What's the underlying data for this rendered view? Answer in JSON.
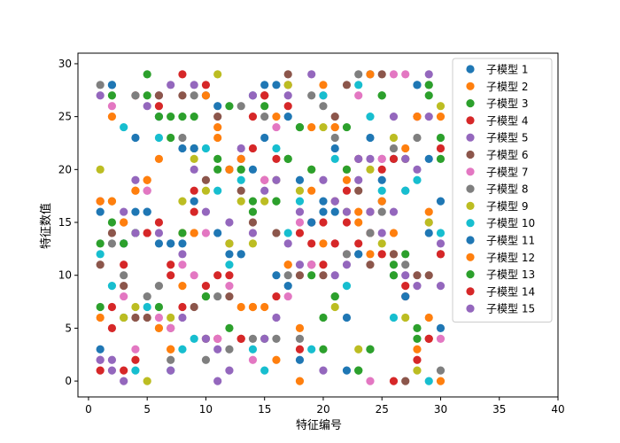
{
  "chart_data": {
    "type": "scatter",
    "title": "",
    "xlabel": "特征编号",
    "ylabel": "特征数值",
    "xlim": [
      -0.9,
      40
    ],
    "ylim": [
      -1.5,
      31
    ],
    "xticks": [
      0,
      5,
      10,
      15,
      20,
      25,
      30,
      35,
      40
    ],
    "yticks": [
      0,
      5,
      10,
      15,
      20,
      25,
      30
    ],
    "grid": false,
    "legend_position": "top-right",
    "series": [
      {
        "name": "子模型 1",
        "color": "#1f77b4",
        "x": [
          1,
          2,
          3,
          4,
          5,
          6,
          7,
          8,
          9,
          10,
          11,
          12,
          13,
          14,
          15,
          16,
          17,
          18,
          19,
          20,
          21,
          22,
          23,
          24,
          25,
          26,
          27,
          28,
          29,
          30
        ],
        "y": [
          3,
          28,
          13,
          23,
          16,
          25,
          13,
          22,
          17,
          27,
          14,
          12,
          12,
          27,
          23,
          28,
          9,
          2,
          15,
          17,
          16,
          1,
          12,
          23,
          19,
          21,
          18,
          28,
          21,
          5
        ]
      },
      {
        "name": "子模型 2",
        "color": "#ff7f0e",
        "x": [
          1,
          2,
          3,
          4,
          5,
          6,
          7,
          8,
          9,
          10,
          11,
          12,
          13,
          14,
          15,
          16,
          17,
          18,
          19,
          20,
          21,
          22,
          23,
          24,
          25,
          26,
          27,
          28,
          29,
          30
        ],
        "y": [
          6,
          25,
          15,
          18,
          19,
          21,
          3,
          9,
          14,
          27,
          24,
          20,
          7,
          7,
          27,
          2,
          11,
          5,
          24,
          13,
          24,
          20,
          16,
          12,
          12,
          12,
          22,
          3,
          6,
          0
        ]
      },
      {
        "name": "子模型 3",
        "color": "#2ca02c",
        "x": [
          1,
          2,
          3,
          4,
          5,
          6,
          7,
          8,
          9,
          10,
          11,
          12,
          13,
          14,
          15,
          16,
          17,
          18,
          19,
          20,
          21,
          22,
          23,
          24,
          25,
          26,
          27,
          28,
          29,
          30
        ],
        "y": [
          13,
          27,
          6,
          14,
          29,
          7,
          25,
          25,
          22,
          8,
          21,
          26,
          20,
          16,
          26,
          17,
          21,
          24,
          10,
          3,
          8,
          24,
          1,
          3,
          27,
          11,
          21,
          4,
          27,
          23
        ]
      },
      {
        "name": "子模型 4",
        "color": "#d62728",
        "x": [
          1,
          2,
          3,
          4,
          5,
          6,
          7,
          8,
          9,
          10,
          11,
          12,
          13,
          14,
          15,
          16,
          17,
          18,
          19,
          20,
          21,
          22,
          23,
          24,
          25,
          26,
          27,
          28,
          29,
          30
        ],
        "y": [
          17,
          7,
          11,
          27,
          14,
          26,
          11,
          29,
          16,
          28,
          4,
          13,
          4,
          25,
          19,
          8,
          28,
          14,
          15,
          11,
          17,
          15,
          21,
          14,
          20,
          0,
          8,
          25,
          4,
          22
        ]
      },
      {
        "name": "子模型 5",
        "color": "#9467bd",
        "x": [
          1,
          2,
          3,
          4,
          5,
          6,
          7,
          8,
          9,
          10,
          11,
          12,
          13,
          14,
          15,
          16,
          17,
          18,
          19,
          20,
          21,
          22,
          23,
          24,
          25,
          26,
          27,
          28,
          29,
          30
        ],
        "y": [
          27,
          2,
          16,
          19,
          18,
          27,
          28,
          12,
          20,
          16,
          0,
          15,
          21,
          27,
          18,
          6,
          13,
          11,
          11,
          19,
          17,
          11,
          21,
          21,
          21,
          25,
          10,
          20,
          29,
          9
        ]
      },
      {
        "name": "子模型 6",
        "color": "#8c564b",
        "x": [
          1,
          2,
          3,
          4,
          5,
          6,
          7,
          8,
          9,
          10,
          11,
          12,
          13,
          14,
          15,
          16,
          17,
          18,
          19,
          20,
          21,
          22,
          23,
          24,
          25,
          26,
          27,
          28,
          29,
          30
        ],
        "y": [
          11,
          14,
          9,
          6,
          6,
          27,
          5,
          27,
          7,
          19,
          25,
          8,
          18,
          15,
          27,
          14,
          29,
          10,
          11,
          10,
          25,
          28,
          18,
          11,
          29,
          12,
          0,
          10,
          10,
          12
        ]
      },
      {
        "name": "子模型 7",
        "color": "#e377c2",
        "x": [
          1,
          2,
          3,
          4,
          5,
          6,
          7,
          8,
          9,
          10,
          11,
          12,
          13,
          14,
          15,
          16,
          17,
          18,
          19,
          20,
          21,
          22,
          23,
          24,
          25,
          26,
          27,
          28,
          29,
          30
        ],
        "y": [
          2,
          26,
          8,
          3,
          18,
          6,
          5,
          11,
          10,
          14,
          4,
          9,
          21,
          2,
          19,
          24,
          8,
          15,
          11,
          27,
          13,
          12,
          27,
          0,
          21,
          29,
          29,
          25,
          15,
          4
        ]
      },
      {
        "name": "子模型 8",
        "color": "#7f7f7f",
        "x": [
          1,
          2,
          3,
          4,
          5,
          6,
          7,
          8,
          9,
          10,
          11,
          12,
          13,
          14,
          15,
          16,
          17,
          18,
          19,
          20,
          21,
          22,
          23,
          24,
          25,
          26,
          27,
          28,
          29,
          30
        ],
        "y": [
          28,
          13,
          10,
          27,
          8,
          9,
          2,
          23,
          27,
          2,
          8,
          3,
          26,
          4,
          25,
          4,
          10,
          4,
          27,
          26,
          23,
          12,
          29,
          14,
          16,
          22,
          11,
          23,
          28,
          1
        ]
      },
      {
        "name": "子模型 9",
        "color": "#bcbd22",
        "x": [
          1,
          2,
          3,
          4,
          5,
          6,
          7,
          8,
          9,
          10,
          11,
          12,
          13,
          14,
          15,
          16,
          17,
          18,
          19,
          20,
          21,
          22,
          23,
          24,
          25,
          26,
          27,
          28,
          29,
          30
        ],
        "y": [
          20,
          17,
          6,
          7,
          0,
          5,
          6,
          17,
          21,
          18,
          29,
          13,
          17,
          13,
          17,
          19,
          28,
          18,
          20,
          24,
          7,
          16,
          3,
          20,
          13,
          23,
          6,
          1,
          15,
          26
        ]
      },
      {
        "name": "子模型 10",
        "color": "#17becf",
        "x": [
          1,
          2,
          3,
          4,
          5,
          6,
          7,
          8,
          9,
          10,
          11,
          12,
          13,
          14,
          15,
          16,
          17,
          18,
          19,
          20,
          21,
          22,
          23,
          24,
          25,
          26,
          27,
          28,
          29,
          30
        ],
        "y": [
          12,
          9,
          24,
          1,
          7,
          23,
          1,
          3,
          4,
          22,
          18,
          11,
          19,
          3,
          1,
          22,
          14,
          17,
          3,
          27,
          21,
          9,
          28,
          25,
          18,
          6,
          18,
          19,
          0,
          14
        ]
      },
      {
        "name": "子模型 11",
        "color": "#1f77b4",
        "x": [
          1,
          2,
          3,
          4,
          5,
          6,
          7,
          8,
          9,
          10,
          11,
          12,
          13,
          14,
          15,
          16,
          17,
          18,
          19,
          20,
          21,
          22,
          23,
          24,
          25,
          26,
          27,
          28,
          29,
          30
        ],
        "y": [
          16,
          28,
          13,
          16,
          16,
          13,
          13,
          13,
          22,
          4,
          26,
          20,
          12,
          20,
          28,
          10,
          25,
          19,
          15,
          16,
          22,
          6,
          12,
          29,
          17,
          10,
          8,
          28,
          14,
          17
        ]
      },
      {
        "name": "子模型 12",
        "color": "#ff7f0e",
        "x": [
          1,
          2,
          3,
          4,
          5,
          6,
          7,
          8,
          9,
          10,
          11,
          12,
          13,
          14,
          15,
          16,
          17,
          18,
          19,
          20,
          21,
          22,
          23,
          24,
          25,
          26,
          27,
          28,
          29,
          30
        ],
        "y": [
          17,
          17,
          15,
          18,
          19,
          5,
          3,
          14,
          14,
          4,
          23,
          20,
          21,
          7,
          7,
          25,
          11,
          0,
          18,
          28,
          24,
          19,
          15,
          29,
          17,
          14,
          21,
          25,
          16,
          25
        ]
      },
      {
        "name": "子模型 13",
        "color": "#2ca02c",
        "x": [
          1,
          2,
          3,
          4,
          5,
          6,
          7,
          8,
          9,
          10,
          11,
          12,
          13,
          14,
          15,
          16,
          17,
          18,
          19,
          20,
          21,
          22,
          23,
          24,
          25,
          26,
          27,
          28,
          29,
          30
        ],
        "y": [
          7,
          15,
          13,
          14,
          27,
          25,
          23,
          14,
          25,
          8,
          20,
          5,
          20,
          17,
          4,
          17,
          21,
          24,
          20,
          6,
          8,
          20,
          1,
          3,
          27,
          10,
          12,
          5,
          28,
          21
        ]
      },
      {
        "name": "子模型 14",
        "color": "#d62728",
        "x": [
          1,
          2,
          3,
          4,
          5,
          6,
          7,
          8,
          9,
          10,
          11,
          12,
          13,
          14,
          15,
          16,
          17,
          18,
          19,
          20,
          21,
          22,
          23,
          24,
          25,
          26,
          27,
          28,
          29,
          30
        ],
        "y": [
          1,
          5,
          1,
          2,
          14,
          15,
          10,
          7,
          18,
          9,
          10,
          10,
          4,
          22,
          27,
          21,
          26,
          3,
          13,
          15,
          13,
          18,
          13,
          16,
          12,
          21,
          9,
          2,
          4,
          12
        ]
      },
      {
        "name": "子模型 15",
        "color": "#9467bd",
        "x": [
          1,
          2,
          3,
          4,
          5,
          6,
          7,
          8,
          9,
          10,
          11,
          12,
          13,
          14,
          15,
          16,
          17,
          18,
          19,
          20,
          21,
          22,
          23,
          24,
          25,
          26,
          27,
          28,
          29,
          30
        ],
        "y": [
          2,
          1,
          0,
          14,
          26,
          14,
          1,
          6,
          28,
          4,
          3,
          1,
          22,
          14,
          4,
          19,
          27,
          16,
          29,
          1,
          10,
          16,
          19,
          16,
          14,
          16,
          21,
          9,
          25,
          13
        ]
      }
    ]
  }
}
